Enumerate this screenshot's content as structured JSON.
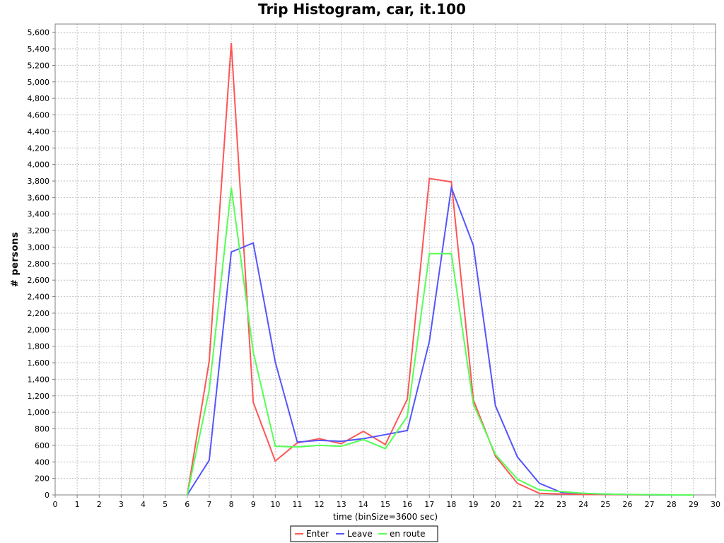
{
  "chart_data": {
    "type": "line",
    "title": "Trip Histogram, car, it.100",
    "xlabel": "time (binSize=3600 sec)",
    "ylabel": "# persons",
    "xlim": [
      0,
      30
    ],
    "ylim": [
      0,
      5700
    ],
    "x_ticks": [
      0,
      1,
      2,
      3,
      4,
      5,
      6,
      7,
      8,
      9,
      10,
      11,
      12,
      13,
      14,
      15,
      16,
      17,
      18,
      19,
      20,
      21,
      22,
      23,
      24,
      25,
      26,
      27,
      28,
      29,
      30
    ],
    "y_ticks": [
      0,
      200,
      400,
      600,
      800,
      1000,
      1200,
      1400,
      1600,
      1800,
      2000,
      2200,
      2400,
      2600,
      2800,
      3000,
      3200,
      3400,
      3600,
      3800,
      4000,
      4200,
      4400,
      4600,
      4800,
      5000,
      5200,
      5400,
      5600
    ],
    "grid": true,
    "legend_position": "bottom",
    "x": [
      6,
      7,
      8,
      9,
      10,
      11,
      12,
      13,
      14,
      15,
      16,
      17,
      18,
      19,
      20,
      21,
      22,
      23,
      24,
      25,
      26,
      27,
      28,
      29
    ],
    "series": [
      {
        "name": "Enter",
        "color": "#ff5555",
        "values": [
          0,
          1620,
          5470,
          1120,
          410,
          630,
          680,
          620,
          770,
          610,
          1160,
          3830,
          3790,
          1150,
          470,
          140,
          20,
          10,
          5,
          5,
          2,
          1,
          0,
          0
        ]
      },
      {
        "name": "Leave",
        "color": "#5555ff",
        "values": [
          0,
          420,
          2940,
          3050,
          1610,
          640,
          660,
          650,
          680,
          730,
          780,
          1860,
          3720,
          3020,
          1080,
          460,
          140,
          30,
          20,
          10,
          5,
          2,
          0,
          0
        ]
      },
      {
        "name": "en route",
        "color": "#55ff55",
        "values": [
          0,
          1270,
          3720,
          1730,
          590,
          580,
          600,
          590,
          670,
          560,
          950,
          2920,
          2920,
          1100,
          490,
          190,
          60,
          40,
          20,
          10,
          5,
          3,
          1,
          0
        ]
      }
    ]
  }
}
